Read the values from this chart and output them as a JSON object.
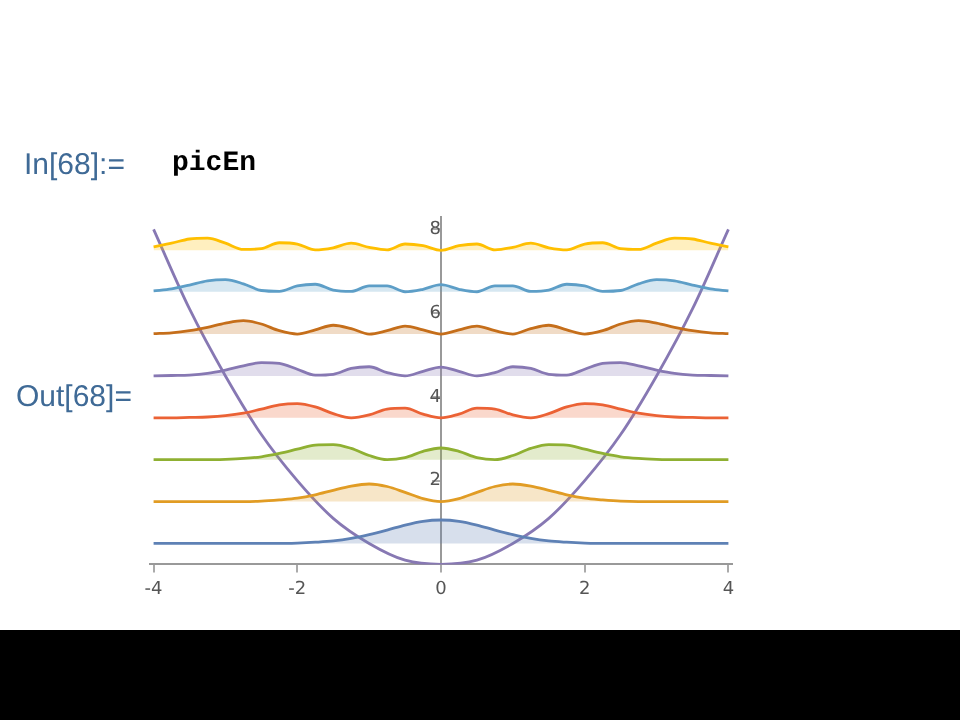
{
  "chart_data": {
    "type": "area",
    "annotations": [
      "In[68]:=",
      "picEn",
      "Out[68]="
    ],
    "x": [
      -4,
      -3.75,
      -3.5,
      -3.25,
      -3,
      -2.75,
      -2.5,
      -2.25,
      -2,
      -1.75,
      -1.5,
      -1.25,
      -1,
      -0.75,
      -0.5,
      -0.25,
      0,
      0.25,
      0.5,
      0.75,
      1,
      1.25,
      1.5,
      1.75,
      2,
      2.25,
      2.5,
      2.75,
      3,
      3.25,
      3.5,
      3.75,
      4
    ],
    "series": [
      {
        "type": "area",
        "color": "#5e81b5",
        "values": [
          0.5,
          0.5,
          0.5,
          0.5,
          0.5,
          0.5,
          0.5,
          0.5,
          0.51,
          0.53,
          0.56,
          0.62,
          0.71,
          0.82,
          0.94,
          1.03,
          1.06,
          1.03,
          0.94,
          0.82,
          0.71,
          0.62,
          0.56,
          0.53,
          0.51,
          0.5,
          0.5,
          0.5,
          0.5,
          0.5,
          0.5,
          0.5,
          0.5
        ]
      },
      {
        "type": "area",
        "color": "#e19c24",
        "values": [
          1.5,
          1.5,
          1.5,
          1.5,
          1.5,
          1.5,
          1.51,
          1.54,
          1.58,
          1.66,
          1.77,
          1.87,
          1.92,
          1.86,
          1.72,
          1.57,
          1.5,
          1.57,
          1.72,
          1.86,
          1.92,
          1.87,
          1.77,
          1.66,
          1.58,
          1.54,
          1.51,
          1.5,
          1.5,
          1.5,
          1.5,
          1.5,
          1.5
        ]
      },
      {
        "type": "area",
        "color": "#8fb032",
        "values": [
          2.5,
          2.5,
          2.5,
          2.5,
          2.51,
          2.53,
          2.57,
          2.65,
          2.75,
          2.85,
          2.86,
          2.77,
          2.6,
          2.5,
          2.55,
          2.7,
          2.78,
          2.7,
          2.55,
          2.5,
          2.6,
          2.77,
          2.86,
          2.85,
          2.75,
          2.65,
          2.57,
          2.53,
          2.51,
          2.5,
          2.5,
          2.5,
          2.5
        ]
      },
      {
        "type": "area",
        "color": "#eb6235",
        "values": [
          3.5,
          3.5,
          3.51,
          3.52,
          3.55,
          3.61,
          3.71,
          3.81,
          3.84,
          3.76,
          3.6,
          3.5,
          3.57,
          3.71,
          3.73,
          3.59,
          3.5,
          3.59,
          3.73,
          3.71,
          3.57,
          3.5,
          3.6,
          3.76,
          3.84,
          3.81,
          3.71,
          3.61,
          3.55,
          3.52,
          3.51,
          3.5,
          3.5
        ]
      },
      {
        "type": "area",
        "color": "#8778b3",
        "values": [
          4.5,
          4.51,
          4.52,
          4.56,
          4.64,
          4.74,
          4.82,
          4.8,
          4.66,
          4.52,
          4.54,
          4.68,
          4.72,
          4.58,
          4.5,
          4.61,
          4.71,
          4.61,
          4.5,
          4.58,
          4.72,
          4.68,
          4.54,
          4.52,
          4.66,
          4.8,
          4.82,
          4.74,
          4.64,
          4.56,
          4.52,
          4.51,
          4.5
        ]
      },
      {
        "type": "area",
        "color": "#c56e1a",
        "values": [
          5.51,
          5.53,
          5.58,
          5.66,
          5.76,
          5.82,
          5.74,
          5.58,
          5.5,
          5.6,
          5.71,
          5.63,
          5.5,
          5.58,
          5.69,
          5.6,
          5.5,
          5.6,
          5.69,
          5.58,
          5.5,
          5.63,
          5.71,
          5.6,
          5.5,
          5.58,
          5.74,
          5.82,
          5.76,
          5.66,
          5.58,
          5.53,
          5.51
        ]
      },
      {
        "type": "area",
        "color": "#5d9ec7",
        "values": [
          6.53,
          6.58,
          6.67,
          6.77,
          6.8,
          6.7,
          6.54,
          6.52,
          6.65,
          6.69,
          6.55,
          6.52,
          6.65,
          6.65,
          6.51,
          6.57,
          6.68,
          6.57,
          6.51,
          6.65,
          6.65,
          6.52,
          6.55,
          6.69,
          6.65,
          6.52,
          6.54,
          6.7,
          6.8,
          6.77,
          6.67,
          6.58,
          6.53
        ]
      },
      {
        "type": "area",
        "color": "#ffbf00",
        "values": [
          7.58,
          7.67,
          7.77,
          7.79,
          7.67,
          7.52,
          7.54,
          7.68,
          7.65,
          7.51,
          7.56,
          7.67,
          7.57,
          7.51,
          7.65,
          7.61,
          7.5,
          7.61,
          7.65,
          7.51,
          7.57,
          7.67,
          7.56,
          7.51,
          7.65,
          7.68,
          7.54,
          7.52,
          7.67,
          7.79,
          7.77,
          7.67,
          7.58
        ]
      },
      {
        "type": "line",
        "color": "#8778b3",
        "x": [
          -4,
          -3.5,
          -3,
          -2.5,
          -2,
          -1.5,
          -1,
          -0.5,
          0,
          0.5,
          1,
          1.5,
          2,
          2.5,
          3,
          3.5,
          4
        ],
        "values": [
          8,
          6.1,
          4.5,
          3.1,
          2,
          1.1,
          0.5,
          0.1,
          0,
          0.1,
          0.5,
          1.1,
          2,
          3.1,
          4.5,
          6.1,
          8
        ]
      }
    ],
    "xlim": [
      -4.05,
      4.05
    ],
    "xticks": [
      -4,
      -2,
      0,
      2,
      4
    ],
    "ylim": [
      0,
      8.3
    ],
    "yticks": [
      2,
      4,
      6,
      8
    ],
    "grid": false,
    "legend": false,
    "marker": "none",
    "line_style": "solid"
  }
}
